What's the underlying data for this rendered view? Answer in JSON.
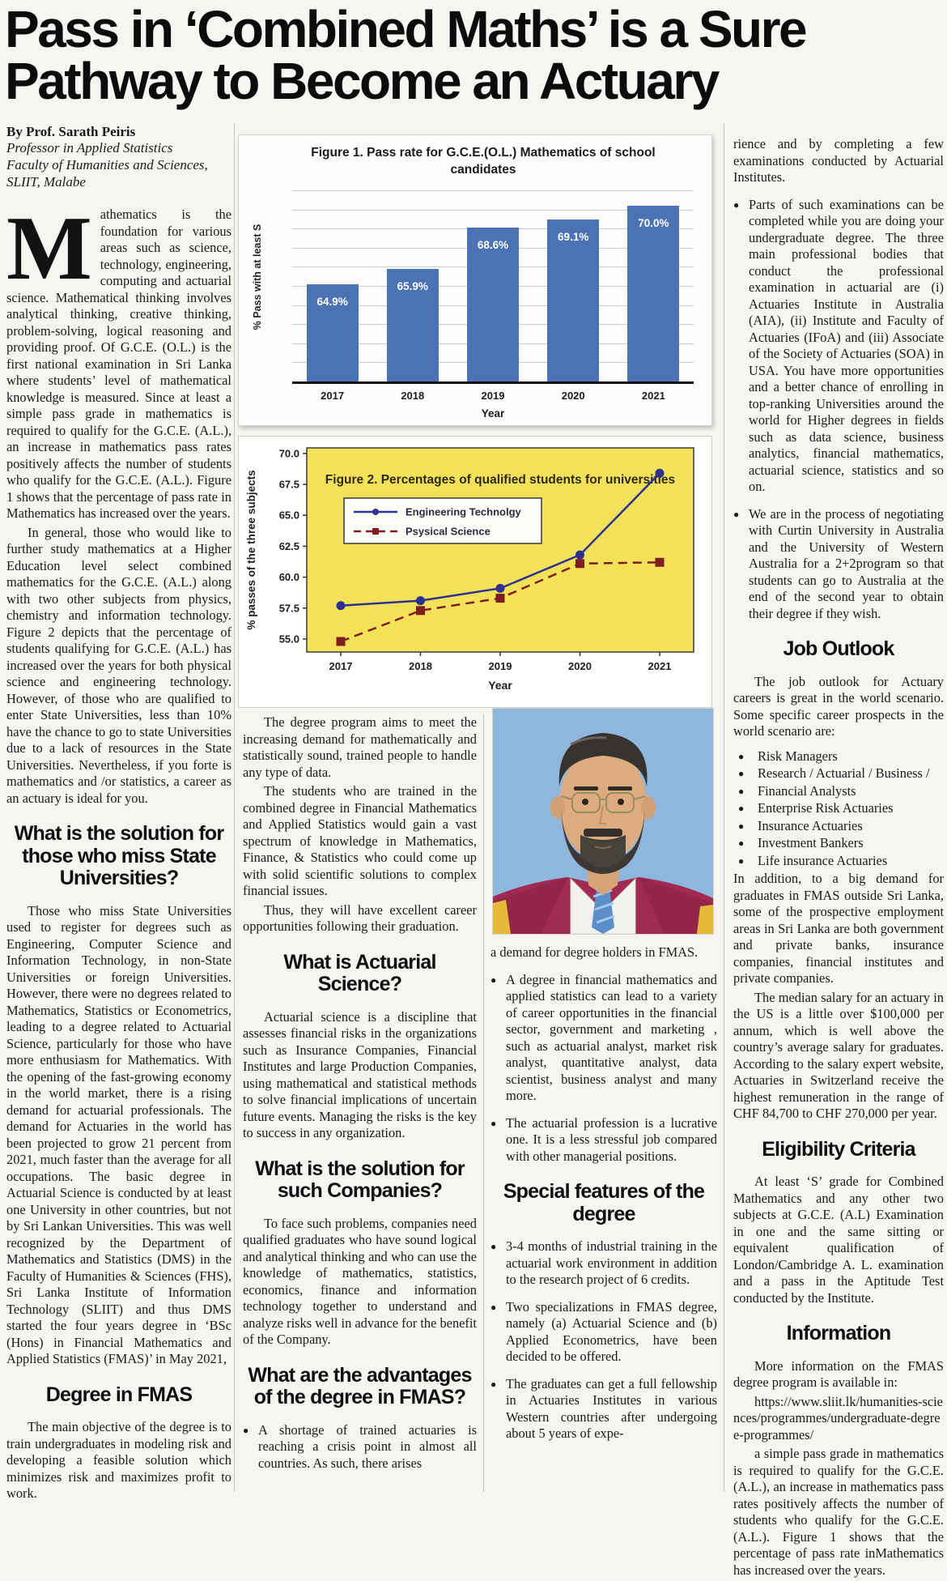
{
  "page": {
    "headline_line1": "Pass in ‘Combined Maths’ is a Sure",
    "headline_line2": "Pathway to Become an Actuary"
  },
  "byline": {
    "name": "By Prof. Sarath Peiris",
    "role": "Professor in Applied Statistics",
    "faculty": "Faculty of Humanities and Sciences,",
    "institute": "SLIIT, Malabe"
  },
  "columns": {
    "col1": [
      {
        "type": "p",
        "dropcap": "M",
        "text": "athematics is the foundation for various areas such as science, technology, engineering, computing and actuarial science. Mathematical thinking involves analytical thinking, creative thinking, problem-solving, logical reasoning and providing proof. Of G.C.E. (O.L.) is the first national examination in Sri Lanka where students’ level of mathematical knowledge is measured. Since at least a simple pass grade in mathematics is required to qualify for the G.C.E. (A.L.), an increase in mathematics pass rates positively affects the number of students who qualify for the G.C.E. (A.L.). Figure 1 shows that the percentage of pass rate in Mathematics has increased over the years."
      },
      {
        "type": "p",
        "text": "In general, those who would like to  further study mathematics at a Higher Education level select combined mathematics for the G.C.E. (A.L.) along with two other subjects from physics, chemistry and information technology. Figure 2 depicts that the percentage of students qualifying for G.C.E. (A.L.) has increased over the years for both physical science and engineering technology. However, of those who are qualified to enter State Universities, less than 10% have the chance to go to state Universities due to a lack of resources in the State Universities. Nevertheless, if you forte is mathematics and /or statistics, a career as an actuary is ideal for you."
      },
      {
        "type": "h",
        "text": "What is the solution for those who miss State Universities?"
      },
      {
        "type": "p",
        "text": "Those who miss State Universities used to register for degrees such as Engineering, Computer Science and Information Technology, in non-State Universities or foreign Universities.  However, there were no degrees related to Mathematics, Statistics or Econometrics, leading to a degree related to Actuarial Science, particularly for those who have more enthusiasm for Mathematics. With the opening of the fast-growing economy in the world market, there is a rising demand for actuarial professionals. The demand for Actuaries in the world has been projected to grow 21 percent from 2021, much faster than the average for all occupations. The basic degree in Actuarial Science is conducted by at least one University in other countries, but not by Sri Lankan Universities. This was well recognized by the Department of Mathematics and Statistics (DMS) in the Faculty of Humanities & Sciences (FHS), Sri Lanka Institute of Information Technology (SLIIT) and thus DMS started the four years degree in ‘BSc (Hons) in Financial Mathematics and Applied Statistics (FMAS)’ in May 2021,"
      },
      {
        "type": "h",
        "text": "Degree in FMAS"
      },
      {
        "type": "p",
        "text": "The main objective of the degree is to train undergraduates in modeling risk and developing a feasible solution which minimizes risk and maximizes profit to work."
      }
    ],
    "col2": [
      {
        "type": "p",
        "text": "The degree program aims to meet the increasing demand for mathematically and statistically sound, trained people to handle any type of data."
      },
      {
        "type": "p",
        "text": "The students who are trained in the combined degree in Financial Mathematics and Applied Statistics would gain a vast spectrum of knowledge in Mathematics, Finance, & Statistics who could come up with solid scientific solutions to complex financial issues."
      },
      {
        "type": "p",
        "text": "Thus, they will have excellent career opportunities following their graduation."
      },
      {
        "type": "h",
        "text": "What is Actuarial Science?"
      },
      {
        "type": "p",
        "text": "Actuarial science is a discipline that assesses financial risks in the organizations such as Insurance Companies, Financial Institutes and large Production Companies, using mathematical and statistical methods to solve financial implications of uncertain future events. Managing the risks is the key to success in any organization."
      },
      {
        "type": "h",
        "text": "What is the solution for such Companies?"
      },
      {
        "type": "p",
        "text": "To face such problems, companies need qualified graduates who have sound logical and analytical thinking and who can use the knowledge of mathematics, statistics, economics, finance and information technology together to understand and analyze risks well in advance for the benefit of the Company."
      },
      {
        "type": "h",
        "text": "What are the advantages of the degree in FMAS?"
      },
      {
        "type": "bullet",
        "text": "A shortage of trained actuaries is reaching a crisis point in almost all countries. As such, there arises"
      }
    ],
    "col3": [
      {
        "type": "p",
        "cont": true,
        "text": "a demand for degree holders in FMAS."
      },
      {
        "type": "bullet",
        "text": "A degree in financial mathematics and applied statistics can lead to a variety of career opportunities in the financial sector, government and marketing , such as actuarial analyst, market risk analyst, quantitative analyst, data scientist, business analyst and many more."
      },
      {
        "type": "bullet",
        "text": "The actuarial profession is a lucrative one. It is a less stressful job compared with other managerial positions."
      },
      {
        "type": "h",
        "text": "Special features of the degree"
      },
      {
        "type": "bullet",
        "text": "3-4 months of industrial training in the actuarial work environment in addition to the research project of 6 credits."
      },
      {
        "type": "bullet",
        "text": "Two specializations in FMAS degree, namely (a) Actuarial Science and (b) Applied Econometrics, have been decided to be offered."
      },
      {
        "type": "bullet",
        "text": "The graduates can get a full fellowship in Actuaries Institutes in various Western countries after undergoing about 5 years of expe-"
      }
    ],
    "col4": [
      {
        "type": "p",
        "cont": true,
        "text": "rience and by completing a few examinations conducted by Actuarial Institutes."
      },
      {
        "type": "bullet",
        "text": "Parts of such examinations can be completed while you are doing your undergraduate degree. The three main professional bodies that conduct the professional examination in actuarial are (i) Actuaries Institute in Australia (AIA), (ii) Institute and Faculty of Actuaries (IFoA) and (iii)  Associate of the Society of Actuaries (SOA) in USA. You have more opportunities and a better chance of enrolling in top-ranking Universities around the world for Higher degrees in fields such as data science, business analytics, financial mathematics, actuarial science, statistics and so on."
      },
      {
        "type": "bullet",
        "text": "We are in the process of negotiating with Curtin University in Australia and the University of Western Australia for a 2+2program so that students can go to Australia at the end of the second year to obtain their degree if they wish."
      },
      {
        "type": "h",
        "text": "Job Outlook"
      },
      {
        "type": "p",
        "text": "The job outlook for Actuary careers is great in the world scenario. Some specific career prospects in the world scenario are:"
      },
      {
        "type": "list",
        "items": [
          "Risk Managers",
          "Research / Actuarial / Business /",
          "Financial Analysts",
          "Enterprise Risk Actuaries",
          "Insurance Actuaries",
          "Investment Bankers",
          "Life insurance Actuaries"
        ]
      },
      {
        "type": "p",
        "cont": true,
        "text": "In addition, to a big demand for graduates in FMAS outside Sri Lanka, some of the prospective employment areas in Sri Lanka are both government and private banks, insurance companies, financial institutes and private companies."
      },
      {
        "type": "p",
        "text": "The median salary for an actuary in the US is a little over $100,000 per annum, which is well above the country’s average salary for graduates. According to the salary expert website, Actuaries in Switzerland receive the highest remuneration in the range of CHF 84,700 to CHF 270,000 per year."
      },
      {
        "type": "h",
        "text": "Eligibility Criteria"
      },
      {
        "type": "p",
        "text": "At least ‘S’ grade for Combined Mathematics and any other two subjects at G.C.E. (A.L) Examination in one and the same sitting or equivalent qualification of London/Cambridge A. L. examination and a pass in the Aptitude Test conducted by the Institute."
      },
      {
        "type": "h",
        "text": "Information"
      },
      {
        "type": "p",
        "text": "More information on the FMAS degree program is available in:"
      },
      {
        "type": "p",
        "class": "url",
        "text": "https://www.sliit.lk/humanities-sciences/programmes/undergraduate-degree-programmes/"
      },
      {
        "type": "p",
        "text": "a simple pass grade in mathematics is required to qualify for the G.C.E. (A.L.), an increase in mathematics pass rates positively affects the number of students who qualify for the G.C.E. (A.L.). Figure 1 shows that the percentage of pass rate inMathematics has increased over the years."
      }
    ]
  },
  "chart_data": [
    {
      "type": "bar",
      "title": "Figure 1.  Pass rate for G.C.E.(O.L.) Mathematics of school candidates",
      "categories": [
        "2017",
        "2018",
        "2019",
        "2020",
        "2021"
      ],
      "values": [
        64.9,
        65.9,
        68.6,
        69.1,
        70.0
      ],
      "labels": [
        "64.9%",
        "65.9%",
        "68.6%",
        "69.1%",
        "70.0%"
      ],
      "xlabel": "Year",
      "ylabel": "% Pass with at least S",
      "ylim": [
        58.6,
        71.0
      ],
      "bar_color": "#4a72b4",
      "grid": true,
      "legend_position": "none"
    },
    {
      "type": "line",
      "title": "Figure 2.  Percentages of qualified students for universities",
      "x": [
        2017,
        2018,
        2019,
        2020,
        2021
      ],
      "series": [
        {
          "name": "Engineering Technolgy",
          "values": [
            57.7,
            58.1,
            59.1,
            61.8,
            68.4
          ],
          "color": "#2e3192",
          "style": "solid",
          "marker": "circle"
        },
        {
          "name": "Psysical Science",
          "values": [
            54.8,
            57.3,
            58.3,
            61.1,
            61.2
          ],
          "color": "#7e1e1e",
          "style": "dashed",
          "marker": "square"
        }
      ],
      "xlabel": "Year",
      "ylabel": "% passes of the three subjects",
      "yticks": [
        55.0,
        57.5,
        60.0,
        62.5,
        65.0,
        67.5,
        70.0
      ],
      "ylim": [
        53.95,
        70.45
      ],
      "plot_bg": "#f3e15a",
      "grid": false,
      "legend_position": "upper-left"
    }
  ]
}
